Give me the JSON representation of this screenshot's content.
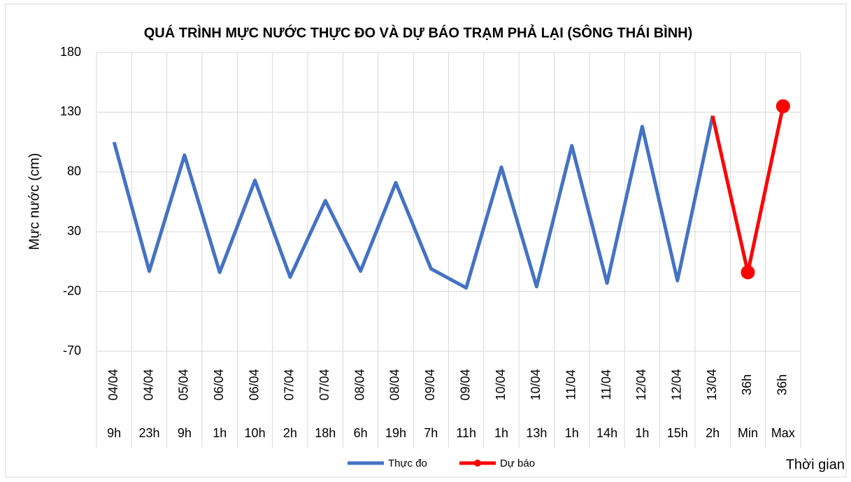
{
  "chart_data": {
    "type": "line",
    "title": "QUÁ TRÌNH MỰC NƯỚC THỰC ĐO VÀ DỰ BÁO TRẠM PHẢ LẠI (SÔNG THÁI BÌNH)",
    "y_label": "Mực nước (cm)",
    "x_label": "Thời gian",
    "categories": [
      "04/04",
      "04/04",
      "05/04",
      "06/04",
      "06/04",
      "07/04",
      "07/04",
      "08/04",
      "08/04",
      "09/04",
      "09/04",
      "10/04",
      "10/04",
      "11/04",
      "11/04",
      "12/04",
      "12/04",
      "13/04",
      "36h",
      "36h"
    ],
    "categories_sub": [
      "9h",
      "23h",
      "9h",
      "1h",
      "10h",
      "2h",
      "18h",
      "6h",
      "19h",
      "7h",
      "11h",
      "1h",
      "13h",
      "1h",
      "14h",
      "1h",
      "15h",
      "2h",
      "Min",
      "Max"
    ],
    "series": [
      {
        "name": "Thực đo",
        "color": "#4472c4",
        "values": [
          105,
          -3,
          94,
          -4,
          73,
          -8,
          56,
          -3,
          71,
          -1,
          -17,
          84,
          -16,
          102,
          -13,
          118,
          -11,
          127,
          null,
          null
        ]
      },
      {
        "name": "Dự báo",
        "color": "#ff0000",
        "values": [
          null,
          null,
          null,
          null,
          null,
          null,
          null,
          null,
          null,
          null,
          null,
          null,
          null,
          null,
          null,
          null,
          null,
          127,
          -4,
          135
        ]
      }
    ],
    "ylim": [
      -70,
      180
    ],
    "yticks": [
      -70,
      -20,
      30,
      80,
      130,
      180
    ],
    "grid": true,
    "legend": "bottom"
  }
}
